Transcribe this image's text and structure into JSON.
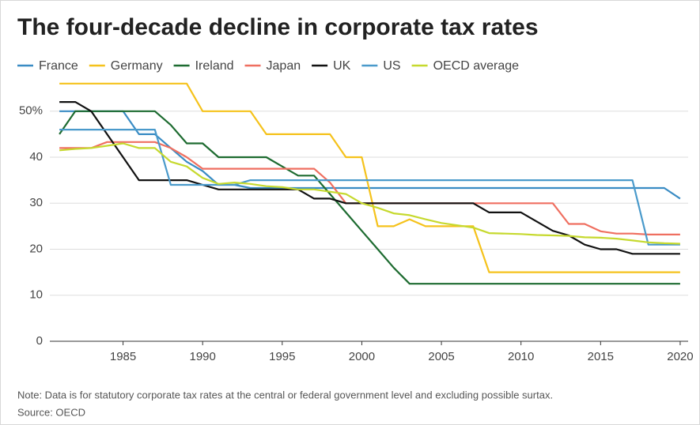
{
  "chart_data": {
    "type": "line",
    "title": "The four-decade decline in corporate tax rates",
    "x": [
      1981,
      1982,
      1983,
      1984,
      1985,
      1986,
      1987,
      1988,
      1989,
      1990,
      1991,
      1992,
      1993,
      1994,
      1995,
      1996,
      1997,
      1998,
      1999,
      2000,
      2001,
      2002,
      2003,
      2004,
      2005,
      2006,
      2007,
      2008,
      2009,
      2010,
      2011,
      2012,
      2013,
      2014,
      2015,
      2016,
      2017,
      2018,
      2019,
      2020
    ],
    "xlim": [
      1980.4,
      2020.5
    ],
    "xticks": [
      1985,
      1990,
      1995,
      2000,
      2005,
      2010,
      2015,
      2020
    ],
    "ylim": [
      0,
      57
    ],
    "yticks": [
      0,
      10,
      20,
      30,
      40,
      {
        "value": 50,
        "label": "50%"
      }
    ],
    "grid": true,
    "series": [
      {
        "name": "France",
        "color": "#3a8cc4",
        "values": [
          50,
          50,
          50,
          50,
          50,
          45,
          45,
          42,
          39,
          37,
          34,
          34,
          33.3,
          33.3,
          33.3,
          33.3,
          33.3,
          33.3,
          33.3,
          33.3,
          33.3,
          33.3,
          33.3,
          33.3,
          33.3,
          33.3,
          33.3,
          33.3,
          33.3,
          33.3,
          33.3,
          33.3,
          33.3,
          33.3,
          33.3,
          33.3,
          33.3,
          33.3,
          33.3,
          31
        ]
      },
      {
        "name": "Germany",
        "color": "#f5c21b",
        "values": [
          56,
          56,
          56,
          56,
          56,
          56,
          56,
          56,
          56,
          50,
          50,
          50,
          50,
          45,
          45,
          45,
          45,
          45,
          40,
          40,
          25,
          25,
          26.5,
          25,
          25,
          25,
          25,
          15,
          15,
          15,
          15,
          15,
          15,
          15,
          15,
          15,
          15,
          15,
          15,
          15
        ]
      },
      {
        "name": "Ireland",
        "color": "#1d6b30",
        "values": [
          45,
          50,
          50,
          50,
          50,
          50,
          50,
          47,
          43,
          43,
          40,
          40,
          40,
          40,
          38,
          36,
          36,
          32,
          28,
          24,
          20,
          16,
          12.5,
          12.5,
          12.5,
          12.5,
          12.5,
          12.5,
          12.5,
          12.5,
          12.5,
          12.5,
          12.5,
          12.5,
          12.5,
          12.5,
          12.5,
          12.5,
          12.5,
          12.5
        ]
      },
      {
        "name": "Japan",
        "color": "#ef6f60",
        "values": [
          42,
          42,
          42,
          43.3,
          43.3,
          43.3,
          43.3,
          42,
          40,
          37.5,
          37.5,
          37.5,
          37.5,
          37.5,
          37.5,
          37.5,
          37.5,
          34.5,
          30,
          30,
          30,
          30,
          30,
          30,
          30,
          30,
          30,
          30,
          30,
          30,
          30,
          30,
          25.5,
          25.5,
          23.9,
          23.4,
          23.4,
          23.2,
          23.2,
          23.2
        ]
      },
      {
        "name": "UK",
        "color": "#111111",
        "values": [
          52,
          52,
          50,
          45,
          40,
          35,
          35,
          35,
          35,
          34,
          33,
          33,
          33,
          33,
          33,
          33,
          31,
          31,
          30,
          30,
          30,
          30,
          30,
          30,
          30,
          30,
          30,
          28,
          28,
          28,
          26,
          24,
          23,
          21,
          20,
          20,
          19,
          19,
          19,
          19
        ]
      },
      {
        "name": "US",
        "color": "#4a9acb",
        "values": [
          46,
          46,
          46,
          46,
          46,
          46,
          46,
          34,
          34,
          34,
          34,
          34,
          35,
          35,
          35,
          35,
          35,
          35,
          35,
          35,
          35,
          35,
          35,
          35,
          35,
          35,
          35,
          35,
          35,
          35,
          35,
          35,
          35,
          35,
          35,
          35,
          35,
          21,
          21,
          21
        ]
      },
      {
        "name": "OECD average",
        "color": "#c6d92e",
        "values": [
          41.5,
          41.8,
          42,
          42.5,
          43,
          42,
          42,
          39,
          38,
          35.5,
          34.2,
          34.5,
          34.2,
          33.7,
          33.5,
          33,
          33,
          32.5,
          32,
          30,
          29,
          27.8,
          27.4,
          26.5,
          25.7,
          25.2,
          24.7,
          23.5,
          23.4,
          23.3,
          23.1,
          23,
          22.9,
          22.6,
          22.5,
          22.3,
          21.9,
          21.5,
          21.3,
          21.2
        ]
      }
    ],
    "note": "Note: Data is for statutory corporate tax rates at the central or federal government level and excluding possible surtax.",
    "source": "Source: OECD"
  }
}
